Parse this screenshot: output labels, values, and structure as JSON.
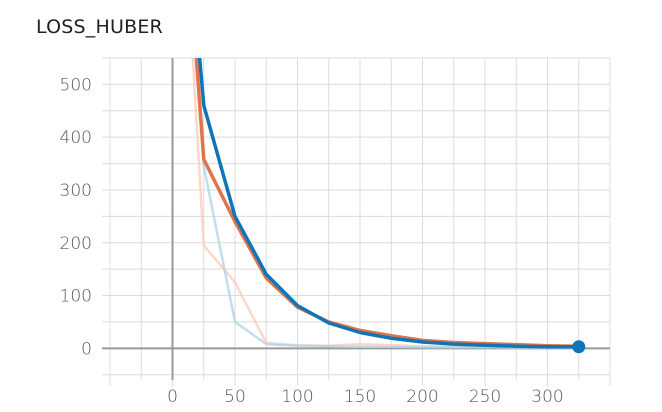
{
  "chart_data": {
    "type": "line",
    "title": "LOSS_HUBER",
    "xlabel": "",
    "ylabel": "",
    "xlim": [
      -50,
      350
    ],
    "ylim": [
      -60,
      550
    ],
    "x_ticks": [
      0,
      50,
      100,
      150,
      200,
      250,
      300
    ],
    "y_ticks": [
      0,
      100,
      200,
      300,
      400,
      500
    ],
    "grid": true,
    "series": [
      {
        "color": "#ffcab8",
        "opacity": 0.75,
        "x": [
          5,
          25,
          50,
          75,
          100,
          125,
          150,
          175,
          200,
          225,
          250,
          275,
          300,
          325
        ],
        "y": [
          1000,
          195,
          125,
          10,
          6,
          5,
          8,
          6,
          4,
          3,
          3,
          2,
          2,
          2
        ]
      },
      {
        "color": "#aed1e6",
        "opacity": 0.75,
        "x": [
          5,
          25,
          50,
          75,
          100,
          125,
          150,
          175,
          200,
          225,
          250,
          275,
          300,
          325
        ],
        "y": [
          1000,
          345,
          50,
          8,
          5,
          4,
          3,
          3,
          2,
          2,
          2,
          1,
          1,
          1
        ]
      },
      {
        "color": "#e0734a",
        "opacity": 1,
        "x": [
          5,
          25,
          50,
          75,
          100,
          125,
          150,
          175,
          200,
          225,
          250,
          275,
          300,
          325
        ],
        "y": [
          1000,
          358,
          240,
          133,
          78,
          50,
          34,
          24,
          15,
          11,
          9,
          7,
          5,
          4
        ]
      },
      {
        "color": "#0f75b7",
        "opacity": 1,
        "x": [
          5,
          25,
          50,
          75,
          100,
          125,
          150,
          175,
          200,
          225,
          250,
          275,
          300,
          325
        ],
        "y": [
          1000,
          460,
          250,
          140,
          81,
          48,
          30,
          19,
          12,
          8,
          6,
          4,
          3,
          3
        ]
      }
    ],
    "end_marker": {
      "x": 325,
      "y": 3,
      "color": "#0f75b7"
    },
    "axis_color": "#999999",
    "grid_color": "#dcdcdc"
  }
}
